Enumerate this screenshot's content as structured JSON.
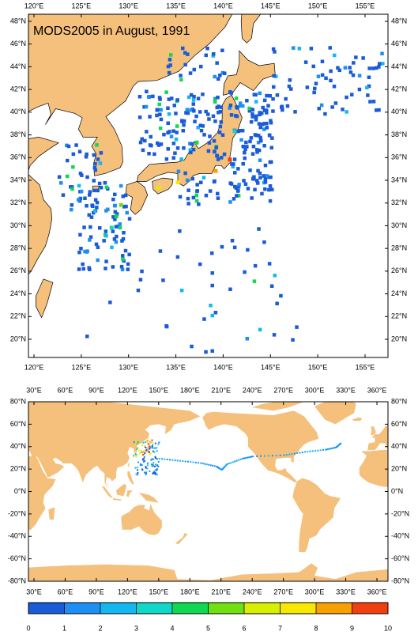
{
  "title": "MODS2005 in August, 1991",
  "top_map": {
    "lon_ticks": [
      {
        "value": 120,
        "label": "120°E"
      },
      {
        "value": 125,
        "label": "125°E"
      },
      {
        "value": 130,
        "label": "130°E"
      },
      {
        "value": 135,
        "label": "135°E"
      },
      {
        "value": 140,
        "label": "140°E"
      },
      {
        "value": 145,
        "label": "145°E"
      },
      {
        "value": 150,
        "label": "150°E"
      },
      {
        "value": 155,
        "label": "155°E"
      }
    ],
    "lat_ticks": [
      {
        "value": 20,
        "label": "20°N"
      },
      {
        "value": 22,
        "label": "22°N"
      },
      {
        "value": 24,
        "label": "24°N"
      },
      {
        "value": 26,
        "label": "26°N"
      },
      {
        "value": 28,
        "label": "28°N"
      },
      {
        "value": 30,
        "label": "30°N"
      },
      {
        "value": 32,
        "label": "32°N"
      },
      {
        "value": 34,
        "label": "34°N"
      },
      {
        "value": 36,
        "label": "36°N"
      },
      {
        "value": 38,
        "label": "38°N"
      },
      {
        "value": 40,
        "label": "40°N"
      },
      {
        "value": 42,
        "label": "42°N"
      },
      {
        "value": 44,
        "label": "44°N"
      },
      {
        "value": 46,
        "label": "46°N"
      },
      {
        "value": 48,
        "label": "48°N"
      }
    ]
  },
  "bottom_map": {
    "lon_ticks": [
      {
        "value": 30,
        "label": "30°E"
      },
      {
        "value": 60,
        "label": "60°E"
      },
      {
        "value": 90,
        "label": "90°E"
      },
      {
        "value": 120,
        "label": "120°E"
      },
      {
        "value": 150,
        "label": "150°E"
      },
      {
        "value": 180,
        "label": "180°E"
      },
      {
        "value": 210,
        "label": "210°E"
      },
      {
        "value": 240,
        "label": "240°E"
      },
      {
        "value": 270,
        "label": "270°E"
      },
      {
        "value": 300,
        "label": "300°E"
      },
      {
        "value": 330,
        "label": "330°E"
      },
      {
        "value": 360,
        "label": "360°E"
      }
    ],
    "lat_ticks": [
      {
        "value": 80,
        "label": "80°N"
      },
      {
        "value": 60,
        "label": "60°N"
      },
      {
        "value": 40,
        "label": "40°N"
      },
      {
        "value": 20,
        "label": "20°N"
      },
      {
        "value": 0,
        "label": "0°N"
      },
      {
        "value": -20,
        "label": "-20°N"
      },
      {
        "value": -40,
        "label": "-40°N"
      },
      {
        "value": -60,
        "label": "-60°N"
      },
      {
        "value": -80,
        "label": "-80°N"
      }
    ]
  },
  "colorbar": {
    "ticks": [
      0,
      1,
      2,
      3,
      4,
      5,
      6,
      7,
      8,
      9,
      10
    ],
    "colors": [
      "#1a5bd6",
      "#1e8ff5",
      "#14b8f0",
      "#10d8c8",
      "#10d850",
      "#70e010",
      "#d8f000",
      "#f8e800",
      "#f8a000",
      "#f04010"
    ]
  }
}
